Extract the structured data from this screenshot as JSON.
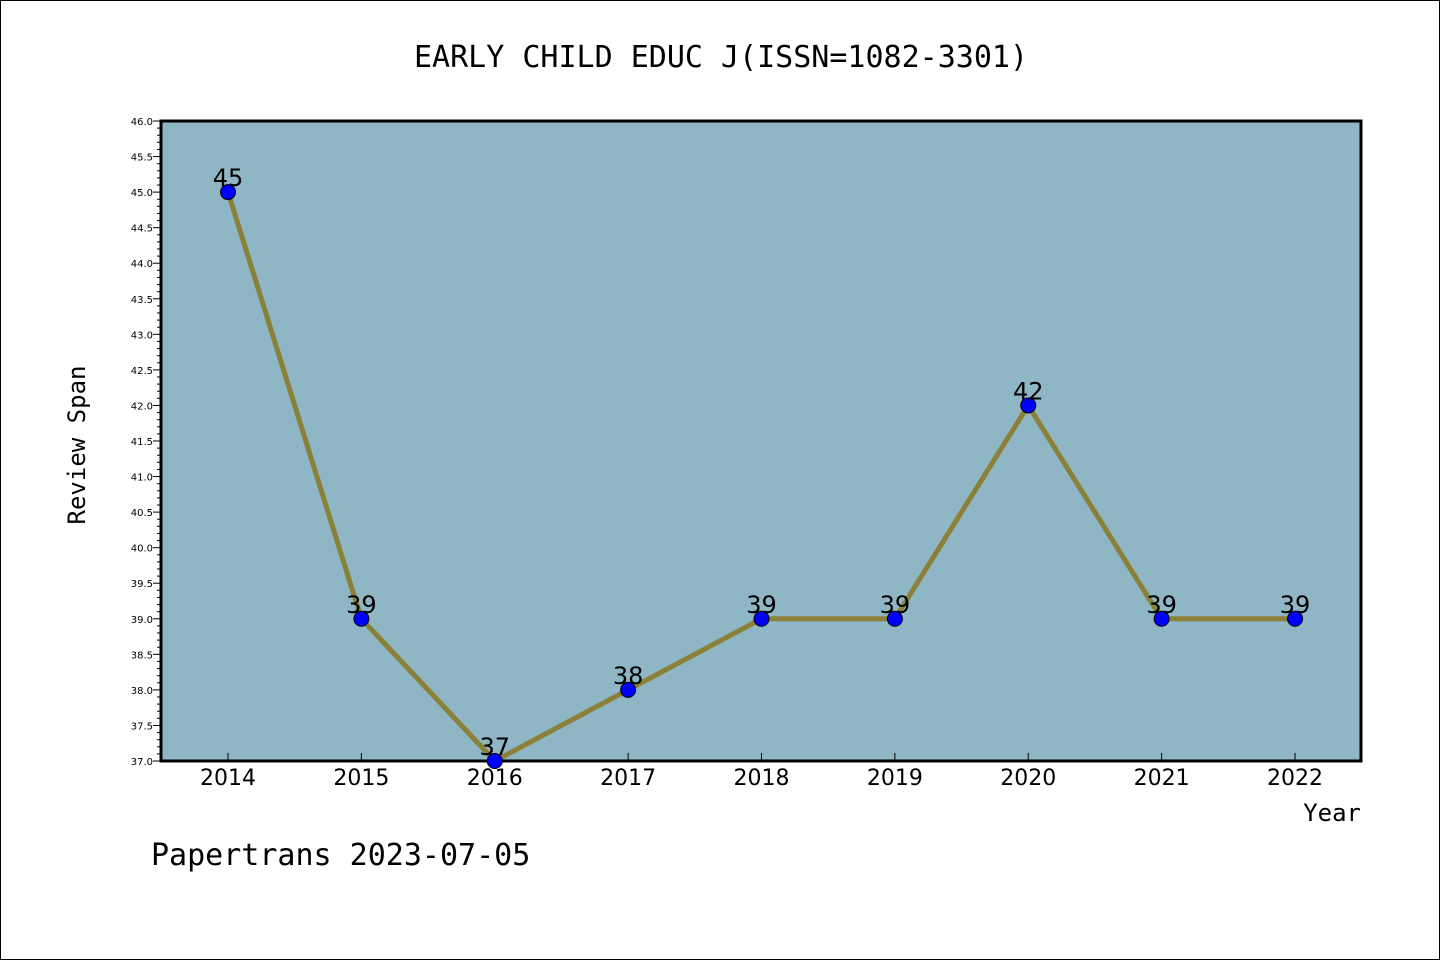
{
  "chart_data": {
    "type": "line",
    "title": "EARLY CHILD EDUC J(ISSN=1082-3301)",
    "xlabel": "Year",
    "ylabel": "Review Span",
    "x": [
      "2014",
      "2015",
      "2016",
      "2017",
      "2018",
      "2019",
      "2020",
      "2021",
      "2022"
    ],
    "values": [
      45,
      39,
      37,
      38,
      39,
      39,
      42,
      39,
      39
    ],
    "data_labels": [
      "45",
      "39",
      "37",
      "38",
      "39",
      "39",
      "42",
      "39",
      "39"
    ],
    "ylim": [
      37.0,
      46.0
    ],
    "yticks": [
      "37.0",
      "37.5",
      "38.0",
      "38.5",
      "39.0",
      "39.5",
      "40.0",
      "40.5",
      "41.0",
      "41.5",
      "42.0",
      "42.5",
      "43.0",
      "43.5",
      "44.0",
      "44.5",
      "45.0",
      "45.5",
      "46.0"
    ],
    "grid": false,
    "plot_background": "#8fb6c4",
    "line_color": "#8b8038",
    "marker_color": "#0000ff"
  },
  "footer": "Papertrans 2023-07-05"
}
